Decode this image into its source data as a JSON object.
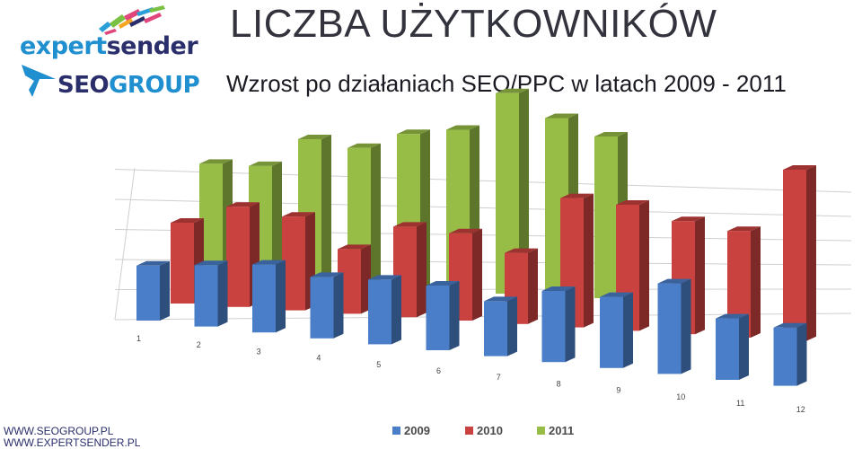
{
  "logos": {
    "expertsender": {
      "part1": "expert",
      "part2": "sender"
    },
    "seogroup": {
      "part1": "SEO",
      "part2": "GROUP"
    }
  },
  "header": {
    "title": "LICZBA UŻYTKOWNIKÓW",
    "subtitle": "Wzrost po działaniach SEO/PPC w latach 2009 - 2011"
  },
  "footer": {
    "line1": "WWW.SEOGROUP.PL",
    "line2": "WWW.EXPERTSENDER.PL"
  },
  "colors": {
    "series_2009": "#4a7ec8",
    "series_2010": "#c9423f",
    "series_2011": "#98bd47",
    "brand_blue": "#1f8fd0",
    "brand_navy": "#2a2f6b"
  },
  "chart_data": {
    "type": "bar",
    "variant": "3d-clustered-depth",
    "title": "",
    "xlabel": "",
    "ylabel": "",
    "categories": [
      "1",
      "2",
      "3",
      "4",
      "5",
      "6",
      "7",
      "8",
      "9",
      "10",
      "11",
      "12"
    ],
    "series": [
      {
        "name": "2009",
        "values": [
          1.7,
          1.9,
          2.1,
          1.9,
          2.0,
          2.0,
          1.7,
          2.2,
          2.2,
          2.8,
          1.9,
          1.8
        ]
      },
      {
        "name": "2010",
        "values": [
          2.5,
          3.1,
          2.9,
          2.0,
          2.8,
          2.7,
          2.2,
          4.0,
          3.9,
          3.5,
          3.3,
          5.3
        ]
      },
      {
        "name": "2011",
        "values": [
          3.6,
          3.6,
          4.5,
          4.3,
          4.8,
          5.0,
          6.2,
          5.5,
          5.0,
          null,
          null,
          null
        ]
      }
    ],
    "ylim": [
      0,
      7
    ],
    "grid": true,
    "legend": "bottom"
  }
}
